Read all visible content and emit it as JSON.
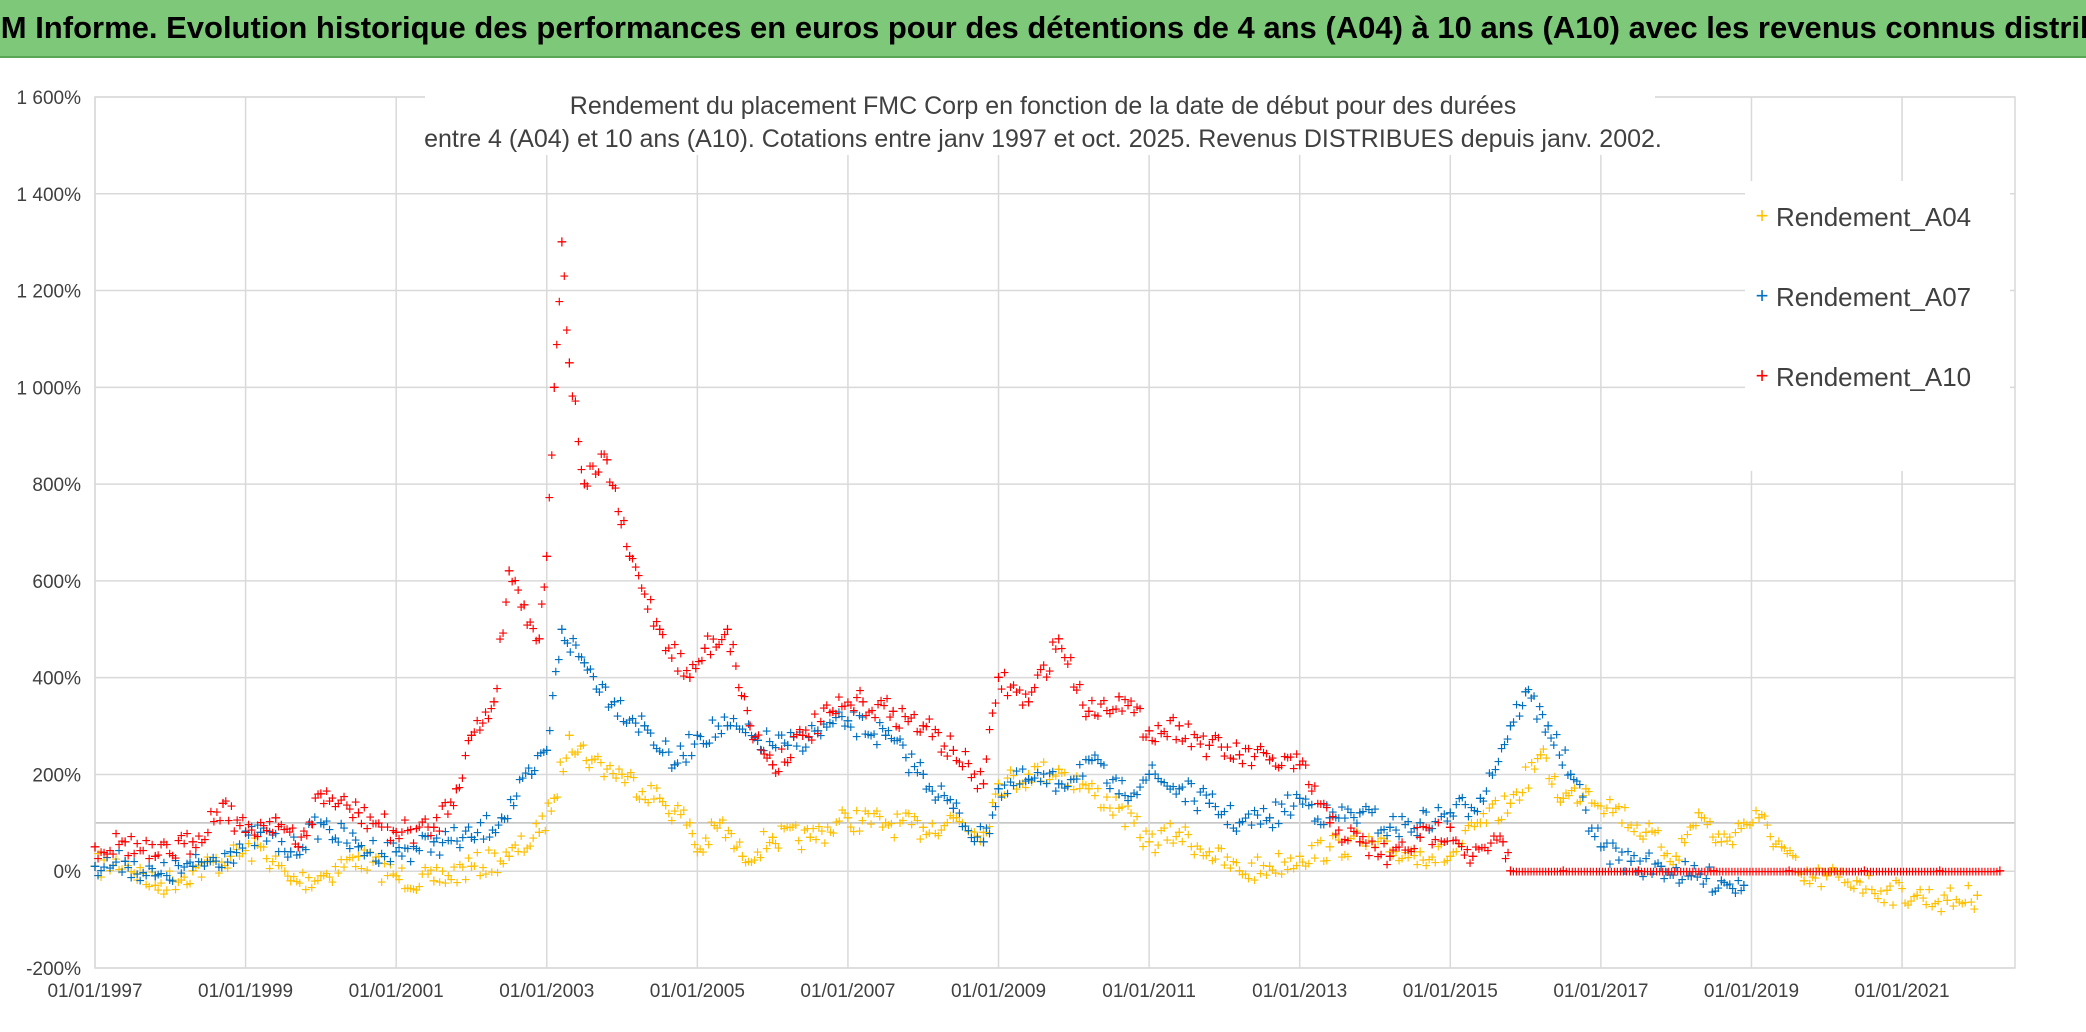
{
  "banner": {
    "title": "ADAM Informe. Evolution historique des performances en euros pour des détentions de 4 ans (A04) à 10 ans (A10) avec les revenus connus distribués"
  },
  "chart_data": {
    "type": "scatter",
    "title_lines": [
      "Rendement du placement FMC Corp en fonction de la date de début pour des durées",
      "entre 4 (A04) et 10 ans (A10). Cotations entre janv 1997 et oct. 2025. Revenus DISTRIBUES depuis janv. 2002."
    ],
    "xlabel": "",
    "ylabel": "",
    "x_unit": "year",
    "xlim": [
      1997.0,
      2022.5
    ],
    "ylim": [
      -200,
      1600
    ],
    "yticks": [
      -200,
      0,
      200,
      400,
      600,
      800,
      1000,
      1200,
      1400,
      1600
    ],
    "ytick_labels": [
      "-200%",
      "0%",
      "200%",
      "400%",
      "600%",
      "800%",
      "1 000%",
      "1 200%",
      "1 400%",
      "1 600%"
    ],
    "xticks": [
      1997,
      1999,
      2001,
      2003,
      2005,
      2007,
      2009,
      2011,
      2013,
      2015,
      2017,
      2019,
      2021
    ],
    "xtick_labels": [
      "01/01/1997",
      "01/01/1999",
      "01/01/2001",
      "01/01/2003",
      "01/01/2005",
      "01/01/2007",
      "01/01/2009",
      "01/01/2011",
      "01/01/2013",
      "01/01/2015",
      "01/01/2017",
      "01/01/2019",
      "01/01/2021"
    ],
    "grid": true,
    "legend_position": "top-right",
    "marker": "+",
    "series": [
      {
        "name": "Rendement_A04",
        "color": "#ffc000",
        "points": [
          [
            1997.0,
            10
          ],
          [
            1997.4,
            20
          ],
          [
            1997.8,
            -30
          ],
          [
            1998.3,
            0
          ],
          [
            1998.8,
            30
          ],
          [
            1999.2,
            50
          ],
          [
            1999.6,
            -20
          ],
          [
            2000.0,
            -10
          ],
          [
            2000.5,
            30
          ],
          [
            2001.0,
            -10
          ],
          [
            2001.5,
            -20
          ],
          [
            2002.0,
            10
          ],
          [
            2002.5,
            30
          ],
          [
            2002.9,
            80
          ],
          [
            2003.1,
            150
          ],
          [
            2003.3,
            280
          ],
          [
            2003.6,
            230
          ],
          [
            2004.0,
            200
          ],
          [
            2004.5,
            150
          ],
          [
            2004.9,
            100
          ],
          [
            2005.0,
            40
          ],
          [
            2005.3,
            100
          ],
          [
            2005.6,
            30
          ],
          [
            2006.0,
            70
          ],
          [
            2006.5,
            70
          ],
          [
            2007.0,
            110
          ],
          [
            2007.5,
            100
          ],
          [
            2008.0,
            90
          ],
          [
            2008.4,
            110
          ],
          [
            2008.8,
            80
          ],
          [
            2009.0,
            180
          ],
          [
            2009.4,
            200
          ],
          [
            2009.8,
            210
          ],
          [
            2010.2,
            170
          ],
          [
            2010.6,
            130
          ],
          [
            2011.0,
            60
          ],
          [
            2011.4,
            80
          ],
          [
            2011.8,
            40
          ],
          [
            2012.2,
            0
          ],
          [
            2012.6,
            10
          ],
          [
            2013.0,
            30
          ],
          [
            2013.4,
            50
          ],
          [
            2013.8,
            60
          ],
          [
            2014.2,
            40
          ],
          [
            2014.6,
            40
          ],
          [
            2015.0,
            30
          ],
          [
            2015.4,
            100
          ],
          [
            2015.8,
            140
          ],
          [
            2016.2,
            240
          ],
          [
            2016.5,
            150
          ],
          [
            2016.8,
            170
          ],
          [
            2017.2,
            130
          ],
          [
            2017.6,
            80
          ],
          [
            2018.0,
            30
          ],
          [
            2018.3,
            120
          ],
          [
            2018.6,
            60
          ],
          [
            2018.9,
            100
          ],
          [
            2019.1,
            110
          ],
          [
            2019.4,
            50
          ],
          [
            2019.7,
            -20
          ],
          [
            2020.0,
            -10
          ],
          [
            2020.4,
            -20
          ],
          [
            2020.8,
            -40
          ],
          [
            2021.2,
            -50
          ],
          [
            2021.6,
            -60
          ],
          [
            2022.0,
            -50
          ]
        ]
      },
      {
        "name": "Rendement_A07",
        "color": "#0070c0",
        "points": [
          [
            1997.0,
            10
          ],
          [
            1997.4,
            20
          ],
          [
            1997.8,
            -10
          ],
          [
            1998.3,
            10
          ],
          [
            1998.8,
            40
          ],
          [
            1999.2,
            80
          ],
          [
            1999.6,
            40
          ],
          [
            2000.0,
            100
          ],
          [
            2000.5,
            50
          ],
          [
            2001.0,
            40
          ],
          [
            2001.5,
            60
          ],
          [
            2002.0,
            70
          ],
          [
            2002.4,
            110
          ],
          [
            2002.8,
            200
          ],
          [
            2003.0,
            250
          ],
          [
            2003.2,
            500
          ],
          [
            2003.5,
            430
          ],
          [
            2003.9,
            350
          ],
          [
            2004.3,
            300
          ],
          [
            2004.7,
            220
          ],
          [
            2005.0,
            280
          ],
          [
            2005.4,
            300
          ],
          [
            2005.8,
            270
          ],
          [
            2006.2,
            260
          ],
          [
            2006.6,
            290
          ],
          [
            2007.0,
            310
          ],
          [
            2007.5,
            280
          ],
          [
            2008.0,
            200
          ],
          [
            2008.4,
            130
          ],
          [
            2008.8,
            60
          ],
          [
            2009.0,
            170
          ],
          [
            2009.4,
            190
          ],
          [
            2009.8,
            180
          ],
          [
            2010.2,
            230
          ],
          [
            2010.6,
            160
          ],
          [
            2011.0,
            200
          ],
          [
            2011.4,
            170
          ],
          [
            2011.8,
            140
          ],
          [
            2012.2,
            100
          ],
          [
            2012.6,
            110
          ],
          [
            2013.0,
            150
          ],
          [
            2013.4,
            110
          ],
          [
            2013.8,
            120
          ],
          [
            2014.2,
            90
          ],
          [
            2014.6,
            100
          ],
          [
            2015.0,
            120
          ],
          [
            2015.4,
            150
          ],
          [
            2015.8,
            300
          ],
          [
            2016.0,
            370
          ],
          [
            2016.3,
            300
          ],
          [
            2016.6,
            200
          ],
          [
            2017.0,
            50
          ],
          [
            2017.4,
            20
          ],
          [
            2017.8,
            10
          ],
          [
            2018.2,
            -10
          ],
          [
            2018.6,
            -20
          ],
          [
            2018.9,
            -30
          ]
        ]
      },
      {
        "name": "Rendement_A10",
        "color": "#ff0000",
        "points": [
          [
            1997.0,
            50
          ],
          [
            1997.4,
            60
          ],
          [
            1997.8,
            30
          ],
          [
            1998.3,
            60
          ],
          [
            1998.7,
            140
          ],
          [
            1999.0,
            80
          ],
          [
            1999.4,
            110
          ],
          [
            1999.7,
            50
          ],
          [
            2000.0,
            160
          ],
          [
            2000.5,
            120
          ],
          [
            2001.0,
            80
          ],
          [
            2001.5,
            90
          ],
          [
            2001.8,
            170
          ],
          [
            2002.0,
            280
          ],
          [
            2002.3,
            350
          ],
          [
            2002.5,
            620
          ],
          [
            2002.7,
            550
          ],
          [
            2002.9,
            480
          ],
          [
            2003.0,
            650
          ],
          [
            2003.1,
            1000
          ],
          [
            2003.2,
            1300
          ],
          [
            2003.3,
            1050
          ],
          [
            2003.5,
            800
          ],
          [
            2003.8,
            850
          ],
          [
            2004.1,
            650
          ],
          [
            2004.5,
            500
          ],
          [
            2004.9,
            400
          ],
          [
            2005.1,
            460
          ],
          [
            2005.4,
            500
          ],
          [
            2005.7,
            300
          ],
          [
            2006.0,
            220
          ],
          [
            2006.4,
            280
          ],
          [
            2006.8,
            330
          ],
          [
            2007.2,
            350
          ],
          [
            2007.6,
            330
          ],
          [
            2008.0,
            300
          ],
          [
            2008.4,
            250
          ],
          [
            2008.8,
            180
          ],
          [
            2009.0,
            400
          ],
          [
            2009.4,
            350
          ],
          [
            2009.8,
            480
          ],
          [
            2010.2,
            330
          ],
          [
            2010.6,
            360
          ],
          [
            2011.0,
            290
          ],
          [
            2011.4,
            300
          ],
          [
            2011.8,
            260
          ],
          [
            2012.2,
            240
          ],
          [
            2012.6,
            230
          ],
          [
            2013.0,
            220
          ],
          [
            2013.4,
            100
          ],
          [
            2013.8,
            60
          ],
          [
            2014.2,
            30
          ],
          [
            2014.6,
            70
          ],
          [
            2015.0,
            90
          ],
          [
            2015.3,
            30
          ],
          [
            2015.7,
            60
          ],
          [
            2015.8,
            0
          ],
          [
            2016.5,
            0
          ],
          [
            2017.5,
            0
          ],
          [
            2018.5,
            0
          ],
          [
            2019.5,
            0
          ],
          [
            2020.5,
            0
          ],
          [
            2021.5,
            0
          ],
          [
            2022.3,
            0
          ]
        ]
      }
    ]
  }
}
